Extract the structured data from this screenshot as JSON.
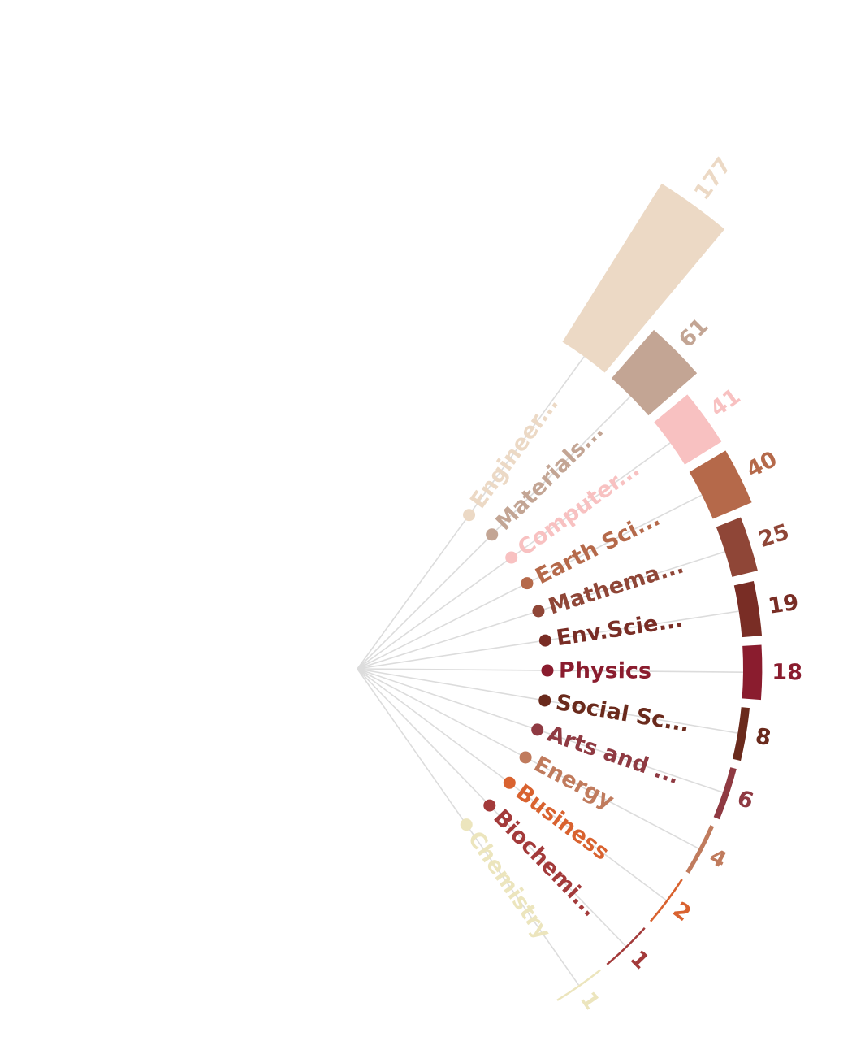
{
  "chart_data": {
    "type": "bar",
    "layout": "radial-fan",
    "title": "",
    "categories": [
      "Engineer...",
      "Materials...",
      "Computer...",
      "Earth Sci...",
      "Mathema...",
      "Env.Scie...",
      "Physics",
      "Social Sc...",
      "Arts and ...",
      "Energy",
      "Business",
      "Biochemi...",
      "Chemistry"
    ],
    "values": [
      177,
      61,
      41,
      40,
      25,
      19,
      18,
      8,
      6,
      4,
      2,
      1,
      1
    ],
    "colors": [
      "#ecd9c5",
      "#c3a594",
      "#f8c1c1",
      "#b5694a",
      "#8f4637",
      "#792d25",
      "#8a1c2e",
      "#6a2a1c",
      "#8f3a42",
      "#c07b5d",
      "#d9622f",
      "#a33a3a",
      "#ece5bd"
    ],
    "grid": false,
    "legend": "none"
  }
}
